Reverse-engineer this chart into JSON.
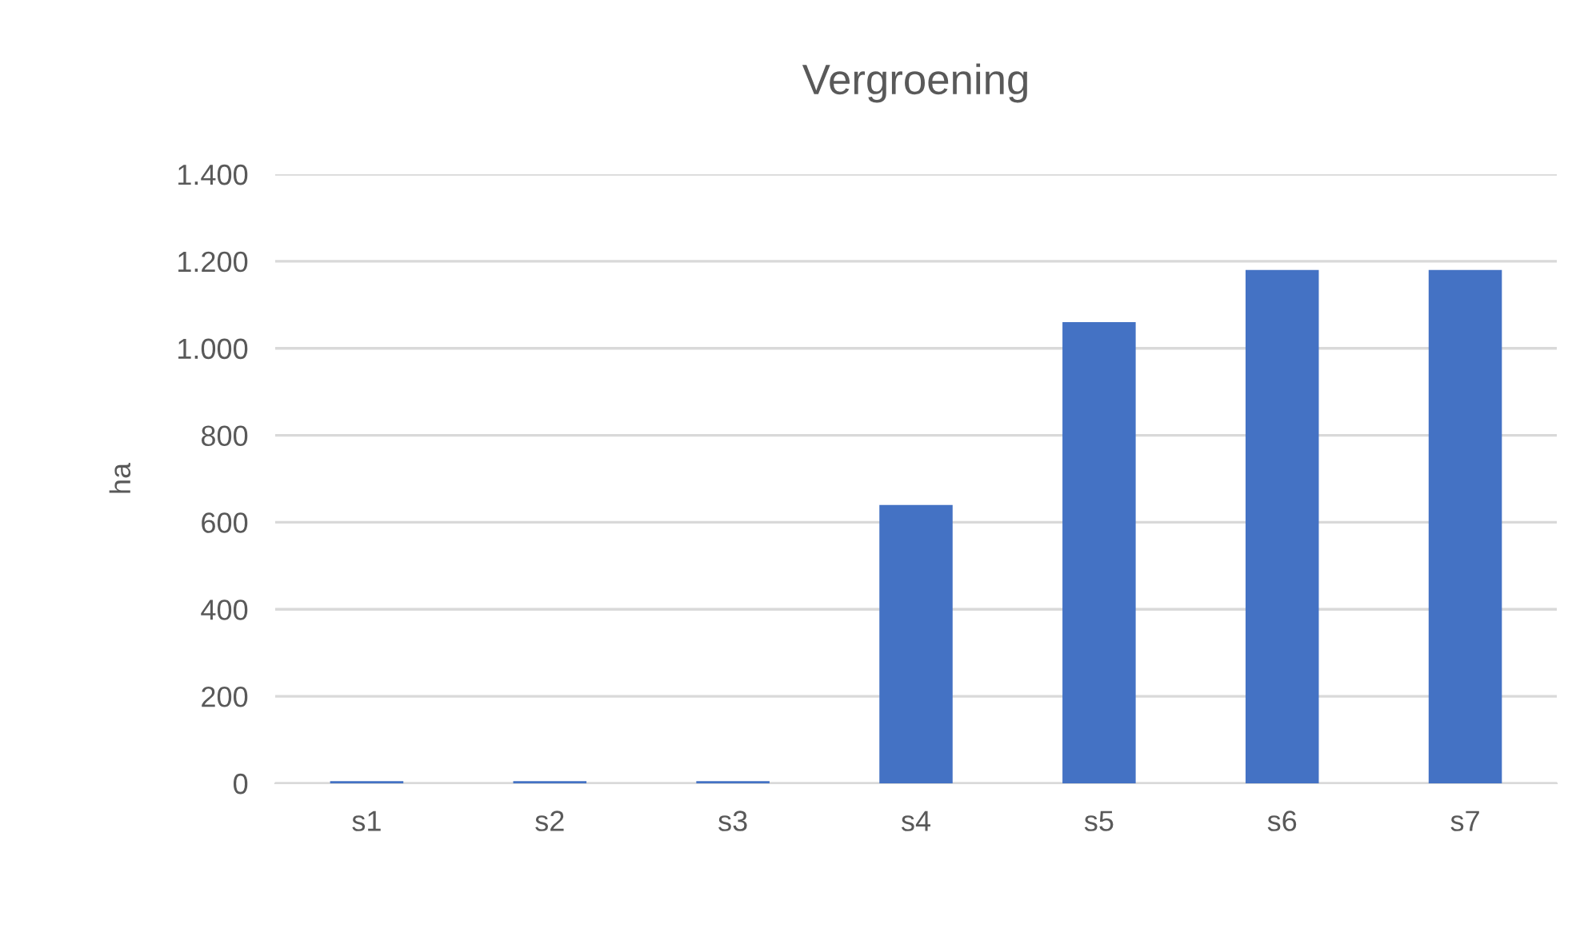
{
  "chart_data": {
    "type": "bar",
    "title": "Vergroening",
    "ylabel": "ha",
    "categories": [
      "s1",
      "s2",
      "s3",
      "s4",
      "s5",
      "s6",
      "s7"
    ],
    "values": [
      5,
      5,
      5,
      640,
      1060,
      1180,
      1180
    ],
    "color": "#4472c4",
    "ylim": [
      0,
      1400
    ],
    "yticks": [
      0,
      200,
      400,
      600,
      800,
      {
        "value": 1000,
        "label": "1.000"
      },
      {
        "value": 1200,
        "label": "1.200"
      },
      {
        "value": 1400,
        "label": "1.400"
      }
    ],
    "grid": "y"
  }
}
